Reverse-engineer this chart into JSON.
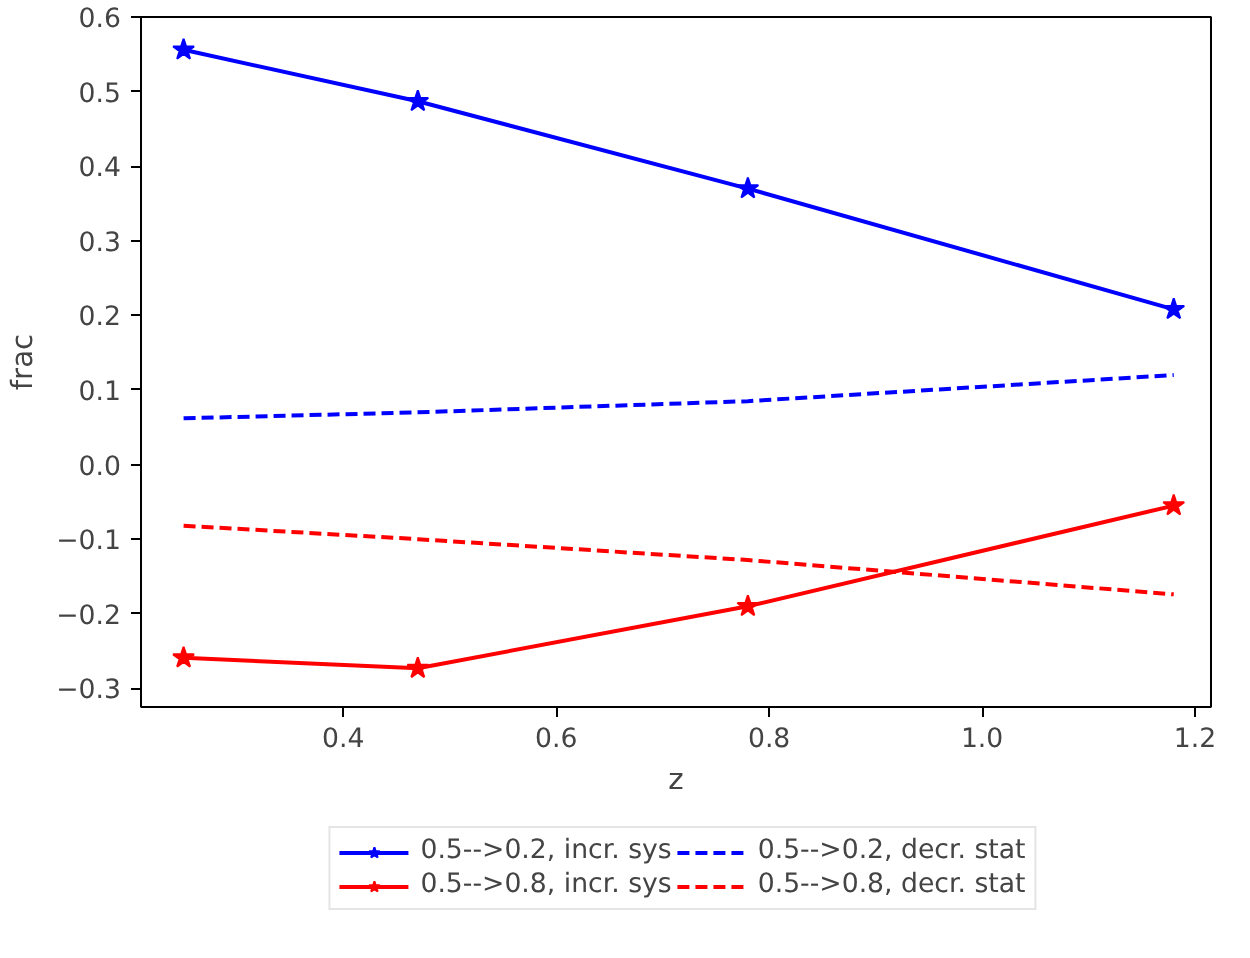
{
  "chart_data": {
    "type": "line",
    "xlabel": "z",
    "ylabel": "frac",
    "x": [
      0.25,
      0.47,
      0.78,
      1.18
    ],
    "xlim": [
      0.21,
      1.215
    ],
    "ylim": [
      -0.325,
      0.6
    ],
    "xticks": [
      {
        "value": 0.4,
        "label": "0.4"
      },
      {
        "value": 0.6,
        "label": "0.6"
      },
      {
        "value": 0.8,
        "label": "0.8"
      },
      {
        "value": 1.0,
        "label": "1.0"
      },
      {
        "value": 1.2,
        "label": "1.2"
      }
    ],
    "yticks": [
      {
        "value": -0.3,
        "label": "−0.3"
      },
      {
        "value": -0.2,
        "label": "−0.2"
      },
      {
        "value": -0.1,
        "label": "−0.1"
      },
      {
        "value": 0.0,
        "label": "0.0"
      },
      {
        "value": 0.1,
        "label": "0.1"
      },
      {
        "value": 0.2,
        "label": "0.2"
      },
      {
        "value": 0.3,
        "label": "0.3"
      },
      {
        "value": 0.4,
        "label": "0.4"
      },
      {
        "value": 0.5,
        "label": "0.5"
      },
      {
        "value": 0.6,
        "label": "0.6"
      }
    ],
    "legend": "bottom",
    "grid": false,
    "series": [
      {
        "name": "0.5-->0.2, incr. sys",
        "color": "#0000ff",
        "values": [
          0.556,
          0.487,
          0.37,
          0.208
        ],
        "marker": "star",
        "line_style": "solid"
      },
      {
        "name": "0.5-->0.8, incr. sys",
        "color": "#ff0000",
        "values": [
          -0.259,
          -0.273,
          -0.19,
          -0.055
        ],
        "marker": "star",
        "line_style": "solid"
      },
      {
        "name": "0.5-->0.2, decr. stat",
        "color": "#0000ff",
        "values": [
          0.062,
          0.07,
          0.085,
          0.12
        ],
        "marker": "none",
        "line_style": "dashed"
      },
      {
        "name": "0.5-->0.8, decr. stat",
        "color": "#ff0000",
        "values": [
          -0.082,
          -0.1,
          -0.128,
          -0.174
        ],
        "marker": "none",
        "line_style": "dashed"
      }
    ]
  }
}
